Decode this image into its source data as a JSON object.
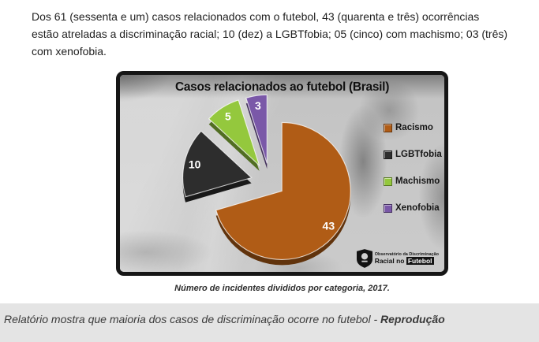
{
  "article": {
    "lines": [
      "Dos 61 (sessenta e um) casos relacionados com o futebol, 43 (quarenta e três) ocorrências",
      "estão atreladas a discriminação racial; 10 (dez) a LGBTfobia; 05 (cinco) com machismo; 03 (três)",
      "com xenofobia."
    ]
  },
  "chart_data": {
    "type": "pie",
    "title": "Casos relacionados ao futebol (Brasil)",
    "categories": [
      "Racismo",
      "LGBTfobia",
      "Machismo",
      "Xenofobia"
    ],
    "values": [
      43,
      10,
      5,
      3
    ],
    "colors": [
      "#b05c16",
      "#2d2d2d",
      "#94c83d",
      "#7a58a8"
    ],
    "total": 61,
    "legend_position": "right",
    "data_labels": [
      43,
      10,
      5,
      3
    ],
    "label_color": "#ffffff",
    "exploded": true
  },
  "figure": {
    "caption": "Número de incidentes divididos por categoria, 2017."
  },
  "logo": {
    "line1": "Observatório da Discriminação",
    "line2_prefix": "Racial no ",
    "line2_highlight": "Futebol"
  },
  "footer": {
    "text": "Relatório mostra que maioria dos casos de discriminação ocorre no futebol - ",
    "credit": "Reprodução"
  }
}
